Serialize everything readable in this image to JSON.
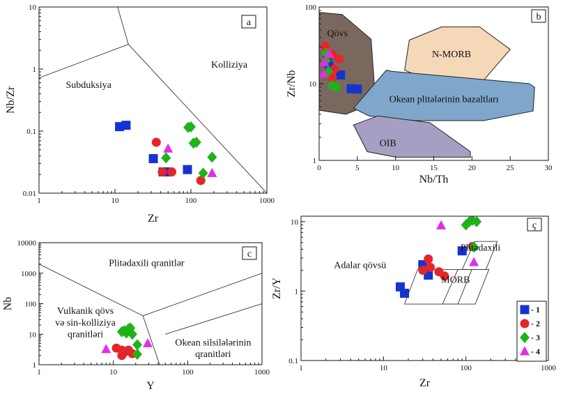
{
  "chart_data": [
    {
      "panel": "a",
      "type": "scatter",
      "xscale": "log",
      "yscale": "log",
      "xlim": [
        1,
        1000
      ],
      "ylim": [
        0.01,
        10
      ],
      "xlabel": "Zr",
      "ylabel": "Nb/Zr",
      "xticks": [
        "1",
        "10",
        "100",
        "1000"
      ],
      "yticks": [
        "0.01",
        "0.1",
        "1",
        "10"
      ],
      "field_labels": [
        {
          "text": "Kolliziya",
          "x": 320,
          "y": 1.05
        },
        {
          "text": "Subduksiya",
          "x": 4.5,
          "y": 0.5
        }
      ],
      "boundaries": [
        [
          [
            1,
            0.72
          ],
          [
            15,
            2.5
          ]
        ],
        [
          [
            15,
            2.5
          ],
          [
            10,
            14
          ]
        ],
        [
          [
            15,
            2.5
          ],
          [
            1000,
            0.01
          ]
        ]
      ],
      "series": [
        {
          "name": "1",
          "values": [
            [
              11.5,
              0.118
            ],
            [
              14,
              0.124
            ],
            [
              32,
              0.036
            ],
            [
              43,
              0.022
            ],
            [
              50,
              0.022
            ],
            [
              90,
              0.024
            ]
          ]
        },
        {
          "name": "2",
          "values": [
            [
              35,
              0.066
            ],
            [
              42,
              0.022
            ],
            [
              56,
              0.022
            ],
            [
              135,
              0.016
            ]
          ]
        },
        {
          "name": "3",
          "values": [
            [
              47,
              0.037
            ],
            [
              92,
              0.115
            ],
            [
              100,
              0.117
            ],
            [
              108,
              0.064
            ],
            [
              118,
              0.066
            ],
            [
              145,
              0.021
            ],
            [
              190,
              0.038
            ]
          ]
        },
        {
          "name": "4",
          "values": [
            [
              50,
              0.052
            ],
            [
              190,
              0.021
            ]
          ]
        }
      ]
    },
    {
      "panel": "b",
      "type": "scatter",
      "xscale": "linear",
      "yscale": "log",
      "xlim": [
        0,
        30
      ],
      "ylim": [
        1,
        100
      ],
      "xlabel": "Nb/Th",
      "ylabel": "Zr/Nb",
      "xticks": [
        "0",
        "5",
        "10",
        "15",
        "20",
        "25",
        "30"
      ],
      "yticks": [
        "1",
        "10",
        "100"
      ],
      "fields": [
        {
          "name": "Qövs",
          "color": "#7a685f",
          "polygon": [
            [
              0,
              85
            ],
            [
              3,
              80
            ],
            [
              6.8,
              38
            ],
            [
              7.2,
              10.5
            ],
            [
              7,
              5.5
            ],
            [
              3.5,
              4
            ],
            [
              0,
              4.5
            ]
          ]
        },
        {
          "name": "N-MORB",
          "color": "#f4d8b8",
          "polygon": [
            [
              11.2,
              15
            ],
            [
              14.8,
              10.5
            ],
            [
              21.5,
              11
            ],
            [
              25,
              28
            ],
            [
              21,
              55
            ],
            [
              16,
              55
            ],
            [
              11.8,
              37
            ]
          ]
        },
        {
          "name": "Okean plitələrinin bazaltları",
          "color": "#7fa7cb",
          "polygon": [
            [
              4.5,
              4.8
            ],
            [
              8.8,
              15
            ],
            [
              9.5,
              14.5
            ],
            [
              27.5,
              10
            ],
            [
              28.2,
              9
            ],
            [
              28,
              4.4
            ],
            [
              21.5,
              3.3
            ],
            [
              12.5,
              3.3
            ],
            [
              6.5,
              3.8
            ]
          ]
        },
        {
          "name": "OIB",
          "color": "#a5a0c3",
          "polygon": [
            [
              4.5,
              2.9
            ],
            [
              7.7,
              3.8
            ],
            [
              14.5,
              3.1
            ],
            [
              19.8,
              1.3
            ],
            [
              19.8,
              1.1
            ],
            [
              10,
              1.1
            ],
            [
              6.3,
              1.3
            ]
          ]
        }
      ],
      "series": [
        {
          "name": "1",
          "values": [
            [
              1.1,
              21
            ],
            [
              1.3,
              17
            ],
            [
              2.8,
              13
            ],
            [
              4.2,
              8.6
            ],
            [
              5,
              8.5
            ]
          ]
        },
        {
          "name": "2",
          "values": [
            [
              0.8,
              31
            ],
            [
              1.7,
              24
            ],
            [
              2.6,
              21
            ],
            [
              2,
              15.5
            ],
            [
              1.7,
              12
            ]
          ]
        },
        {
          "name": "3",
          "values": [
            [
              0.9,
              25
            ],
            [
              0.9,
              20
            ],
            [
              1.2,
              14.5
            ],
            [
              1.7,
              9.5
            ],
            [
              2.3,
              9
            ]
          ]
        },
        {
          "name": "4",
          "values": [
            [
              0.7,
              19
            ],
            [
              0.6,
              13.5
            ],
            [
              1.3,
              24.5
            ]
          ]
        }
      ]
    },
    {
      "panel": "c",
      "type": "scatter",
      "xscale": "log",
      "yscale": "log",
      "xlim": [
        1,
        1000
      ],
      "ylim": [
        1,
        10000
      ],
      "xlabel": "Y",
      "ylabel": "Nb",
      "xticks": [
        "1",
        "10",
        "100",
        "1000"
      ],
      "yticks": [
        "1",
        "10",
        "100",
        "1000",
        "10000"
      ],
      "field_labels": [
        {
          "text": "Plitədaxili qranitlər",
          "x": 28,
          "y": 1700
        },
        {
          "text": "Vulkanik qövs",
          "x": 4.2,
          "y": 47
        },
        {
          "text": "və sin-kolliziya",
          "x": 4.2,
          "y": 19
        },
        {
          "text": "qranitləri",
          "x": 4.2,
          "y": 8
        },
        {
          "text": "Okean silsilələrinin",
          "x": 220,
          "y": 4.3
        },
        {
          "text": "qranitləri",
          "x": 220,
          "y": 1.8
        }
      ],
      "boundaries": [
        [
          [
            1,
            2000
          ],
          [
            25,
            40
          ]
        ],
        [
          [
            25,
            40
          ],
          [
            42,
            1
          ]
        ],
        [
          [
            25,
            40
          ],
          [
            1000,
            1000
          ]
        ],
        [
          [
            50,
            10
          ],
          [
            1000,
            100
          ]
        ]
      ],
      "series": [
        {
          "name": "1",
          "values": []
        },
        {
          "name": "2",
          "values": [
            [
              11,
              3.5
            ],
            [
              13,
              2
            ],
            [
              13,
              3
            ],
            [
              14,
              2.5
            ],
            [
              16,
              3
            ],
            [
              18,
              2.3
            ]
          ]
        },
        {
          "name": "3",
          "values": [
            [
              13,
              12
            ],
            [
              14,
              13
            ],
            [
              15,
              11
            ],
            [
              16,
              15
            ],
            [
              17,
              16
            ],
            [
              18,
              10
            ],
            [
              21,
              4.5
            ],
            [
              21,
              2.2
            ]
          ]
        },
        {
          "name": "4",
          "values": [
            [
              8,
              3.2
            ],
            [
              29,
              5
            ]
          ]
        }
      ]
    },
    {
      "panel": "ç",
      "type": "scatter",
      "xscale": "log",
      "yscale": "log",
      "xlim": [
        1,
        1000
      ],
      "ylim": [
        0.1,
        12
      ],
      "xlabel": "Zr",
      "ylabel": "Zr/Y",
      "xticks": [
        "1",
        "10",
        "100",
        "1000"
      ],
      "yticks": [
        "0.1",
        "1",
        "10"
      ],
      "field_labels": [
        {
          "text": "Adalar qövsü",
          "x": 5.2,
          "y": 2.15
        },
        {
          "text": "Plitədaxili",
          "x": 150,
          "y": 3.8
        },
        {
          "text": "MORB",
          "x": 75,
          "y": 1.32
        }
      ],
      "boundaries": [
        [
          [
            18,
            0.65
          ],
          [
            80,
            0.65
          ],
          [
            118,
            2.05
          ],
          [
            26,
            2.05
          ],
          [
            18,
            0.65
          ]
        ],
        [
          [
            52,
            0.65
          ],
          [
            130,
            0.65
          ],
          [
            190,
            2.05
          ],
          [
            80,
            2.05
          ],
          [
            52,
            0.65
          ]
        ],
        [
          [
            90,
            2.05
          ],
          [
            175,
            2.05
          ],
          [
            240,
            5.2
          ],
          [
            128,
            5.2
          ],
          [
            90,
            2.05
          ]
        ]
      ],
      "series": [
        {
          "name": "1",
          "values": [
            [
              16,
              1.15
            ],
            [
              18,
              0.93
            ],
            [
              30,
              2.4
            ],
            [
              35,
              1.7
            ],
            [
              90,
              3.8
            ]
          ]
        },
        {
          "name": "2",
          "values": [
            [
              30,
              2.0
            ],
            [
              35,
              2.9
            ],
            [
              37,
              2.2
            ],
            [
              47,
              1.9
            ],
            [
              55,
              1.65
            ],
            [
              120,
              4.4
            ]
          ]
        },
        {
          "name": "3",
          "values": [
            [
              100,
              9.0
            ],
            [
              110,
              10.0
            ],
            [
              120,
              10.5
            ],
            [
              135,
              10.0
            ],
            [
              125,
              4.3
            ]
          ]
        },
        {
          "name": "4",
          "values": [
            [
              50,
              8.8
            ],
            [
              125,
              2.6
            ]
          ]
        }
      ]
    }
  ],
  "styles": {
    "1": {
      "shape": "square",
      "color": "#1534cf"
    },
    "2": {
      "shape": "circle",
      "color": "#e4262b"
    },
    "3": {
      "shape": "diamond",
      "color": "#1fb318"
    },
    "4": {
      "shape": "triangle",
      "color": "#e12ee8"
    }
  },
  "legend": {
    "entries": [
      {
        "series": "1",
        "label": "- 1"
      },
      {
        "series": "2",
        "label": "- 2"
      },
      {
        "series": "3",
        "label": "- 3"
      },
      {
        "series": "4",
        "label": "- 4"
      }
    ]
  }
}
